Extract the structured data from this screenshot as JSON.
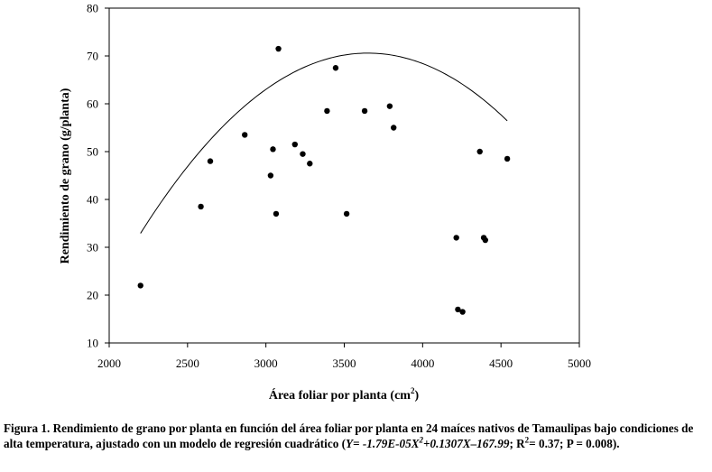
{
  "chart_data": {
    "type": "scatter",
    "xlabel_prefix": "Área foliar por planta (cm",
    "xlabel_sup": "2",
    "xlabel_suffix": ")",
    "ylabel": "Rendimiento de grano (g/planta)",
    "xlim": [
      2000,
      5000
    ],
    "ylim": [
      10,
      80
    ],
    "xticks": [
      2000,
      2500,
      3000,
      3500,
      4000,
      4500,
      5000
    ],
    "yticks": [
      10,
      20,
      30,
      40,
      50,
      60,
      70,
      80
    ],
    "grid": false,
    "points": [
      {
        "x": 2200,
        "y": 22
      },
      {
        "x": 2585,
        "y": 38.5
      },
      {
        "x": 2645,
        "y": 48
      },
      {
        "x": 2865,
        "y": 53.5
      },
      {
        "x": 3030,
        "y": 45
      },
      {
        "x": 3045,
        "y": 50.5
      },
      {
        "x": 3065,
        "y": 37
      },
      {
        "x": 3080,
        "y": 71.5
      },
      {
        "x": 3185,
        "y": 51.5
      },
      {
        "x": 3235,
        "y": 49.5
      },
      {
        "x": 3280,
        "y": 47.5
      },
      {
        "x": 3390,
        "y": 58.5
      },
      {
        "x": 3445,
        "y": 67.5
      },
      {
        "x": 3515,
        "y": 37
      },
      {
        "x": 3630,
        "y": 58.5
      },
      {
        "x": 3790,
        "y": 59.5
      },
      {
        "x": 3815,
        "y": 55
      },
      {
        "x": 4215,
        "y": 32
      },
      {
        "x": 4225,
        "y": 17
      },
      {
        "x": 4255,
        "y": 16.5
      },
      {
        "x": 4365,
        "y": 50
      },
      {
        "x": 4390,
        "y": 32
      },
      {
        "x": 4400,
        "y": 31.5
      },
      {
        "x": 4540,
        "y": 48.5
      }
    ],
    "fit": {
      "type": "quadratic",
      "a": -1.79e-05,
      "b": 0.1307,
      "c": -167.99,
      "x_range": [
        2200,
        4540
      ]
    }
  },
  "caption": {
    "main": "Figura 1. Rendimiento de grano por planta en función del área foliar por planta en 24 maíces nativos de Tamaulipas bajo condiciones de alta temperatura, ajustado con  un modelo de regresión cuadrático (",
    "eq_part1": "Y= -1.79E-05X",
    "eq_sup": "2",
    "eq_part2": "+0.1307X–167.99",
    "r2_part1": "; R",
    "r2_sup": "2",
    "r2_part2": "= 0.37; P = 0.008)."
  }
}
